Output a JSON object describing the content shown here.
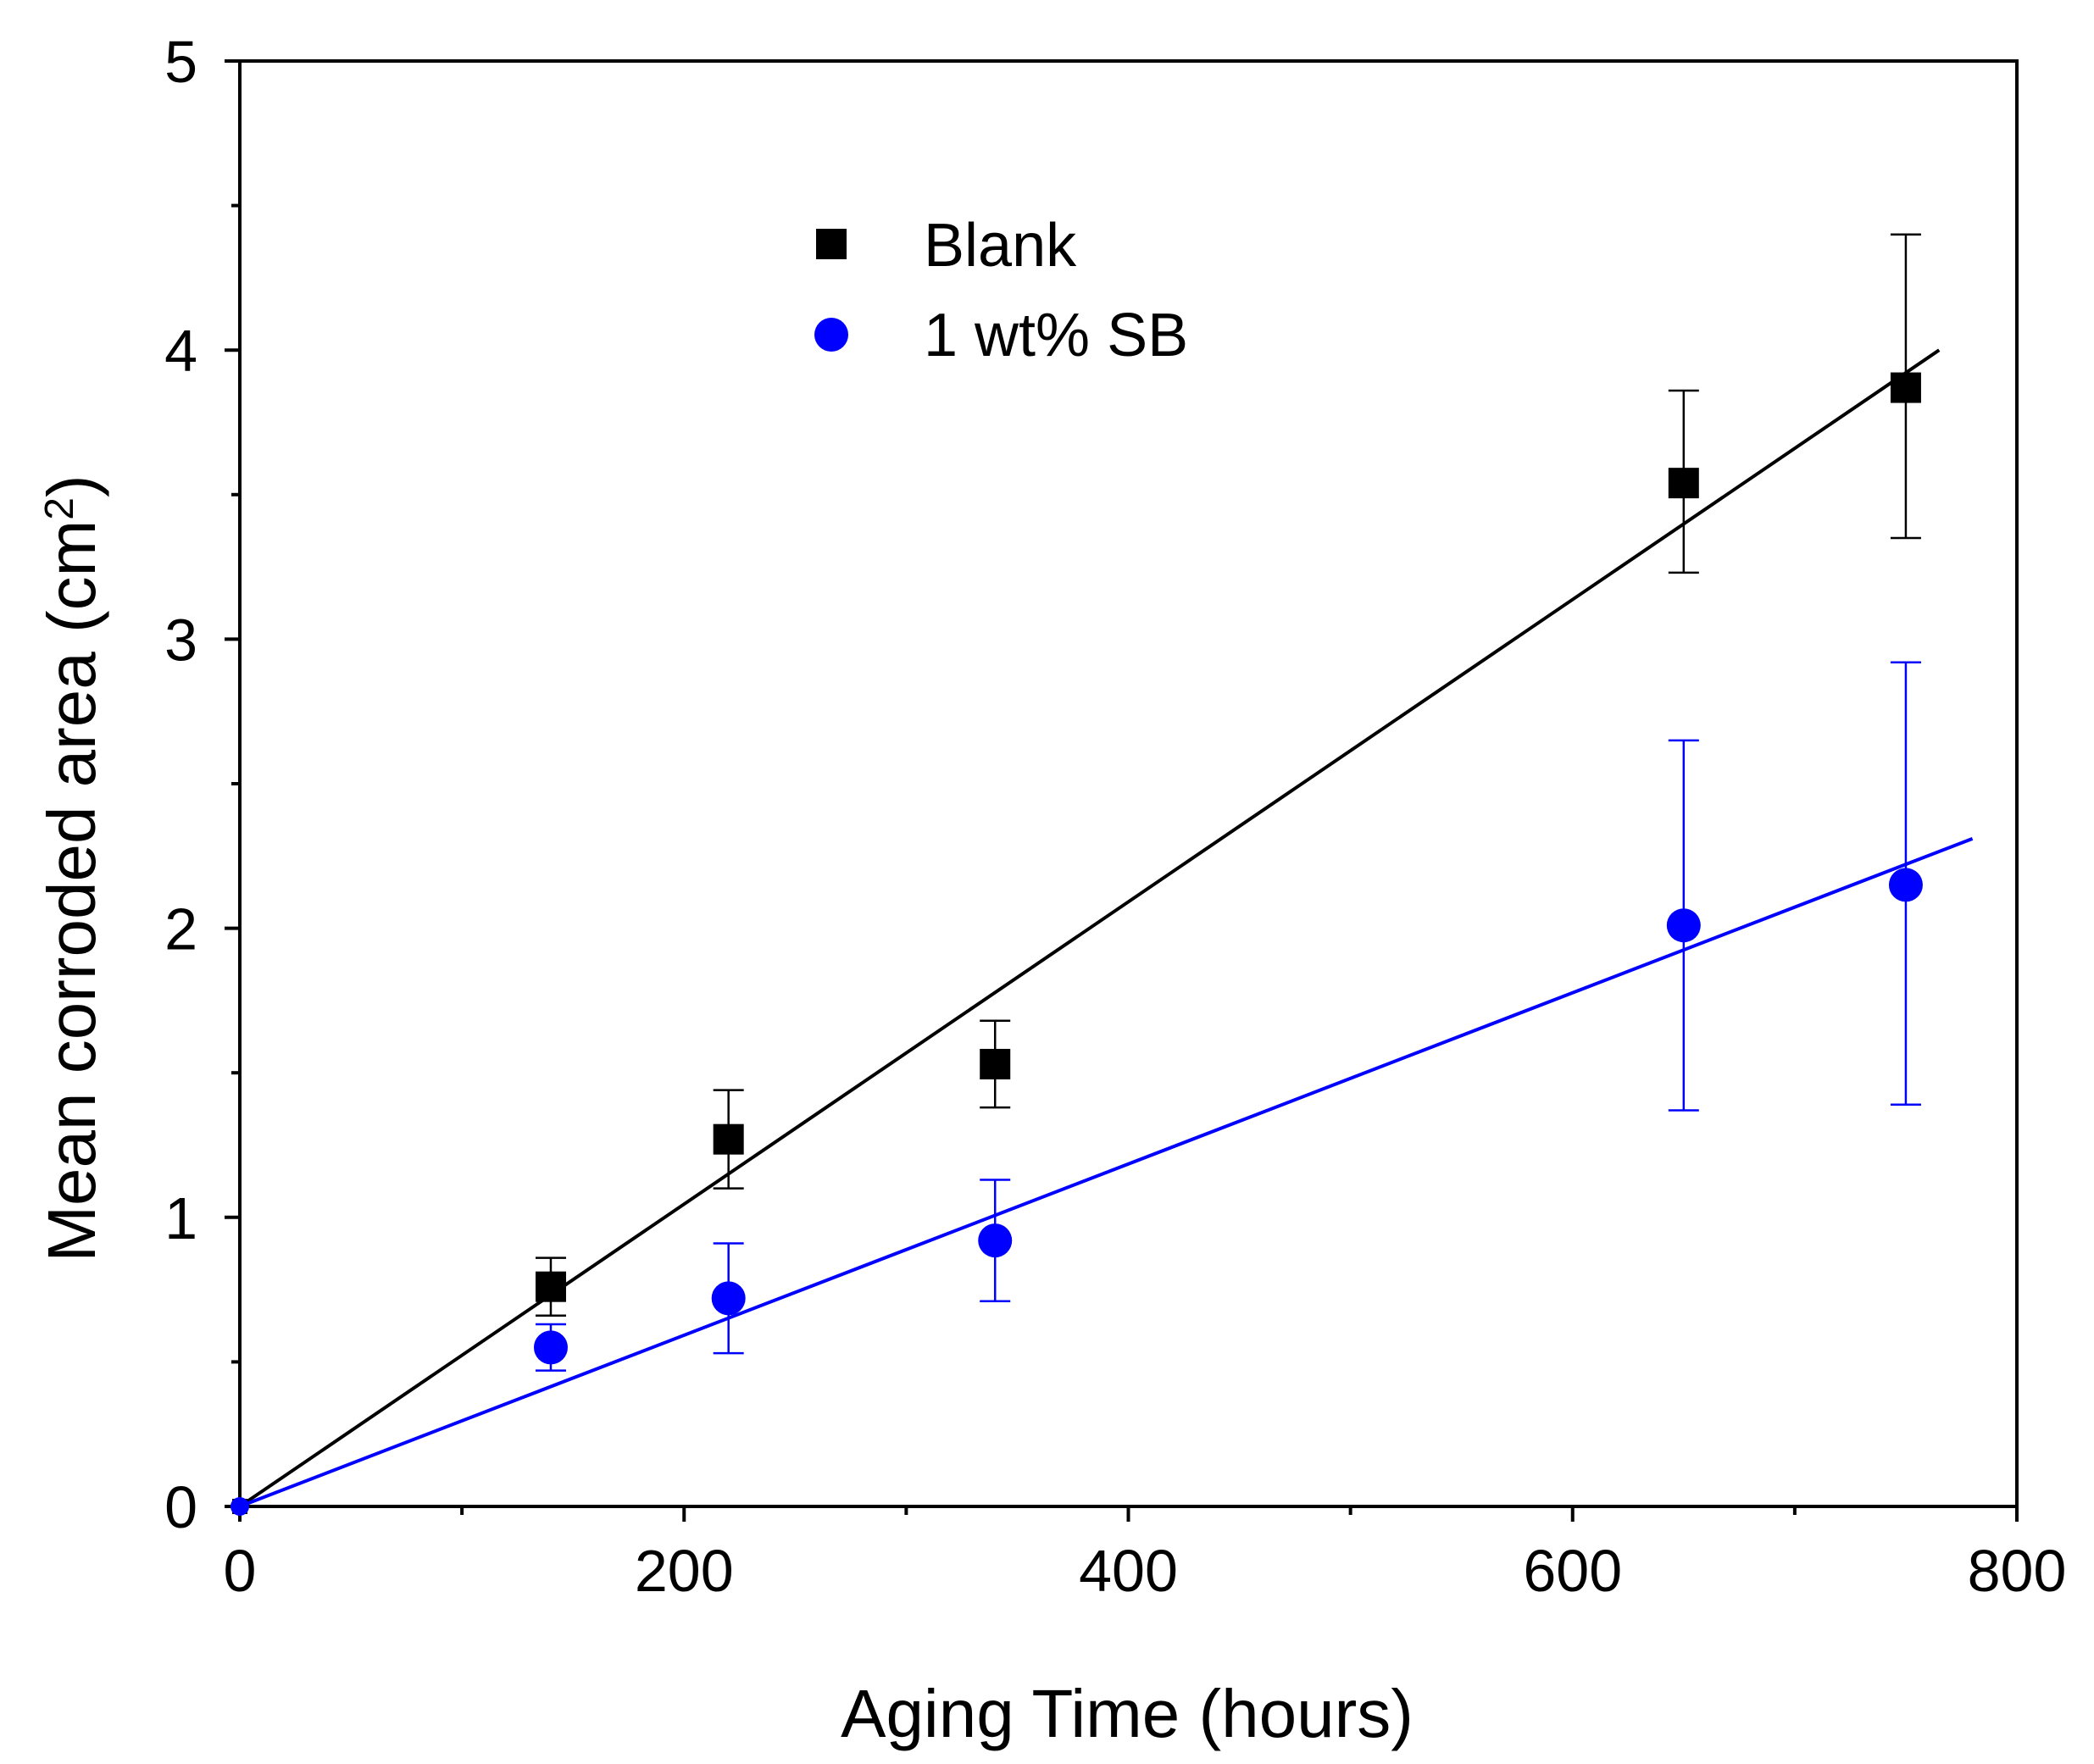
{
  "chart_data": {
    "type": "scatter",
    "title": "",
    "xlabel": "Aging Time (hours)",
    "ylabel": "Mean corroded area (cm",
    "ylabel_sup": "2",
    "ylabel_close": ")",
    "xlim": [
      0,
      800
    ],
    "ylim": [
      0,
      5
    ],
    "xticks": [
      0,
      200,
      400,
      600,
      800
    ],
    "xticks_minor": [
      100,
      300,
      500,
      700
    ],
    "yticks": [
      0,
      1,
      2,
      3,
      4,
      5
    ],
    "yticks_minor": [
      0.5,
      1.5,
      2.5,
      3.5,
      4.5
    ],
    "xtick_labels": [
      "0",
      "200",
      "400",
      "600",
      "800"
    ],
    "ytick_labels": [
      "0",
      "1",
      "2",
      "3",
      "4",
      "5"
    ],
    "grid": false,
    "legend_position": "top-center",
    "series": [
      {
        "name": "Blank",
        "marker": "square",
        "color": "#000000",
        "x": [
          0,
          140,
          220,
          340,
          650,
          750
        ],
        "y": [
          0,
          0.76,
          1.27,
          1.53,
          3.54,
          3.87
        ],
        "err_lower": [
          0,
          0.1,
          0.17,
          0.15,
          0.31,
          0.52
        ],
        "err_upper": [
          0,
          0.1,
          0.17,
          0.15,
          0.32,
          0.53
        ],
        "fit": {
          "x": [
            0,
            765
          ],
          "y": [
            0,
            4.0
          ]
        }
      },
      {
        "name": "1 wt% SB",
        "marker": "circle",
        "color": "#0000ff",
        "x": [
          0,
          140,
          220,
          340,
          650,
          750
        ],
        "y": [
          0,
          0.55,
          0.72,
          0.92,
          2.01,
          2.15
        ],
        "err_lower": [
          0,
          0.08,
          0.19,
          0.21,
          0.64,
          0.76
        ],
        "err_upper": [
          0,
          0.08,
          0.19,
          0.21,
          0.64,
          0.77
        ],
        "fit": {
          "x": [
            0,
            780
          ],
          "y": [
            0,
            2.31
          ]
        }
      }
    ]
  }
}
